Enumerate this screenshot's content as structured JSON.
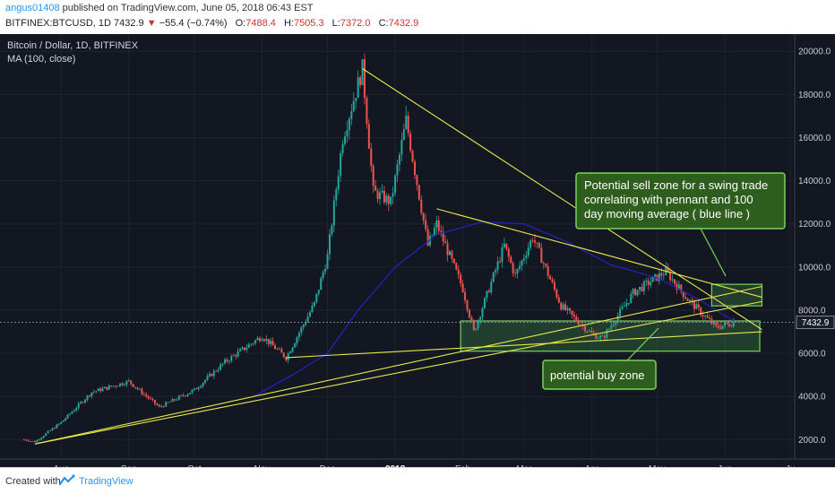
{
  "header": {
    "username": "angus01408",
    "published_text": "published on TradingView.com, June 05, 2018 06:43 EST",
    "symbol": "BITFINEX:BTCUSD, 1D",
    "price": "7432.9",
    "change": "−55.4 (−0.74%)",
    "open_label": "O:",
    "open": "7488.4",
    "high_label": "H:",
    "high": "7505.3",
    "low_label": "L:",
    "low": "7372.0",
    "close_label": "C:",
    "close": "7432.9"
  },
  "legend": {
    "title": "Bitcoin / Dollar, 1D, BITFINEX",
    "indicator": "MA (100, close)"
  },
  "annotations": {
    "sell_zone_text": [
      "Potential sell zone for a swing trade",
      "correlating with pennant and 100",
      "day moving average ( blue line )"
    ],
    "buy_zone_text": "potential buy zone"
  },
  "footer": {
    "created_with": "Created with",
    "brand": "TradingView"
  },
  "colors": {
    "background": "#131722",
    "grid": "#1e2330",
    "up": "#26a69a",
    "down": "#ef5350",
    "ma": "#2323c8",
    "trendline": "#e8e84a",
    "zone": "#4caf50",
    "callout_bg": "#2e5e1e"
  },
  "chart_data": {
    "type": "candlestick",
    "title": "Bitcoin / Dollar, 1D, BITFINEX",
    "y_ticks": [
      "2000.0",
      "4000.0",
      "6000.0",
      "8000.0",
      "10000.0",
      "12000.0",
      "14000.0",
      "16000.0",
      "18000.0",
      "20000.0"
    ],
    "ylim": [
      1100,
      20800
    ],
    "x_ticks": [
      "Aug",
      "Sep",
      "Oct",
      "Nov",
      "Dec",
      "2018",
      "Feb",
      "Mar",
      "Apr",
      "May",
      "Jun",
      "Ju"
    ],
    "current_price": "7432.9",
    "price_path": [
      [
        "2017-07-15",
        2000
      ],
      [
        "2017-07-20",
        1900
      ],
      [
        "2017-08-01",
        2800
      ],
      [
        "2017-08-15",
        4200
      ],
      [
        "2017-09-01",
        4700
      ],
      [
        "2017-09-15",
        3500
      ],
      [
        "2017-10-01",
        4300
      ],
      [
        "2017-10-15",
        5600
      ],
      [
        "2017-11-01",
        6800
      ],
      [
        "2017-11-12",
        5800
      ],
      [
        "2017-11-25",
        8300
      ],
      [
        "2017-12-01",
        10500
      ],
      [
        "2017-12-08",
        16000
      ],
      [
        "2017-12-17",
        19200
      ],
      [
        "2017-12-22",
        13500
      ],
      [
        "2017-12-30",
        13000
      ],
      [
        "2018-01-06",
        16800
      ],
      [
        "2018-01-16",
        11000
      ],
      [
        "2018-01-20",
        12000
      ],
      [
        "2018-02-01",
        9000
      ],
      [
        "2018-02-06",
        7000
      ],
      [
        "2018-02-20",
        11000
      ],
      [
        "2018-02-25",
        9600
      ],
      [
        "2018-03-05",
        11400
      ],
      [
        "2018-03-18",
        8200
      ],
      [
        "2018-04-01",
        6900
      ],
      [
        "2018-04-06",
        6700
      ],
      [
        "2018-04-20",
        8800
      ],
      [
        "2018-05-05",
        9800
      ],
      [
        "2018-05-15",
        8500
      ],
      [
        "2018-05-28",
        7200
      ],
      [
        "2018-06-05",
        7430
      ]
    ],
    "ma100_path": [
      [
        "2017-10-28",
        4000
      ],
      [
        "2017-11-15",
        5000
      ],
      [
        "2017-12-01",
        6000
      ],
      [
        "2017-12-15",
        8000
      ],
      [
        "2018-01-01",
        10000
      ],
      [
        "2018-01-20",
        11500
      ],
      [
        "2018-02-10",
        12100
      ],
      [
        "2018-03-01",
        12000
      ],
      [
        "2018-03-20",
        11200
      ],
      [
        "2018-04-10",
        10100
      ],
      [
        "2018-05-01",
        9500
      ],
      [
        "2018-05-20",
        8500
      ],
      [
        "2018-06-05",
        7500
      ]
    ],
    "trendlines": [
      [
        [
          "2017-07-20",
          1800
        ],
        [
          "2018-06-18",
          9100
        ]
      ],
      [
        [
          "2017-07-20",
          1800
        ],
        [
          "2018-06-18",
          8400
        ]
      ],
      [
        [
          "2017-11-12",
          5800
        ],
        [
          "2018-06-18",
          7000
        ]
      ],
      [
        [
          "2017-12-17",
          19200
        ],
        [
          "2018-06-18",
          7100
        ]
      ],
      [
        [
          "2018-01-20",
          12700
        ],
        [
          "2018-06-18",
          8600
        ]
      ]
    ],
    "buy_zone": {
      "x": [
        "2018-01-31",
        "2018-06-17"
      ],
      "y": [
        6100,
        7500
      ]
    },
    "sell_zone": {
      "x": [
        "2018-05-26",
        "2018-06-18"
      ],
      "y": [
        8200,
        9200
      ]
    }
  }
}
